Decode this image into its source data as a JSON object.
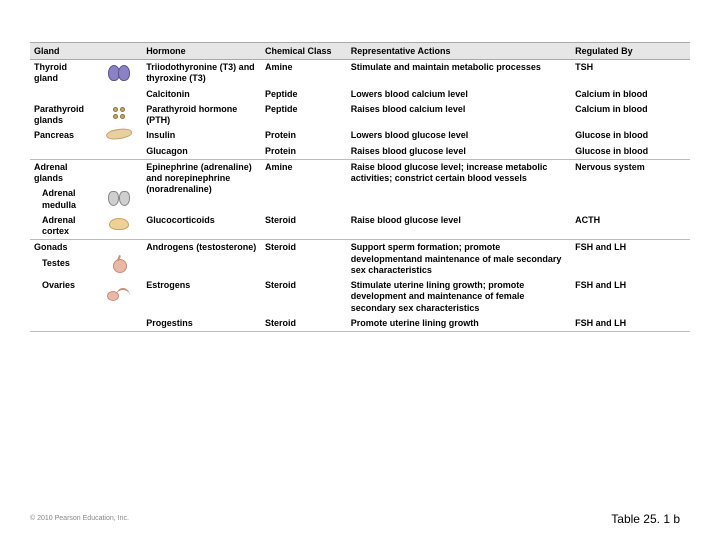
{
  "columns": [
    "Gland",
    "Hormone",
    "Chemical Class",
    "Representative Actions",
    "Regulated By"
  ],
  "rows": [
    {
      "gland": "Thyroid gland",
      "icon": "thyroid",
      "hormone": "Triiodothyronine (T3) and thyroxine (T3)",
      "class": "Amine",
      "action": "Stimulate and maintain metabolic processes",
      "reg": "TSH"
    },
    {
      "gland": "",
      "icon": "",
      "hormone": "Calcitonin",
      "class": "Peptide",
      "action": "Lowers blood calcium level",
      "reg": "Calcium in blood"
    },
    {
      "gland": "Parathyroid glands",
      "icon": "parathyroid",
      "hormone": "Parathyroid hormone (PTH)",
      "class": "Peptide",
      "action": "Raises blood calcium level",
      "reg": "Calcium in blood"
    },
    {
      "gland": "Pancreas",
      "icon": "pancreas",
      "hormone": "Insulin",
      "class": "Protein",
      "action": "Lowers blood glucose level",
      "reg": "Glucose in blood"
    },
    {
      "gland": "",
      "icon": "",
      "hormone": "Glucagon",
      "class": "Protein",
      "action": "Raises blood glucose level",
      "reg": "Glucose in blood",
      "sepAfter": true
    },
    {
      "gland": "Adrenal glands",
      "icon": "",
      "hormone": "Epinephrine (adrenaline) and norepinephrine (noradrenaline)",
      "class": "Amine",
      "action": "Raise blood glucose level; increase metabolic activities; constrict certain blood vessels",
      "reg": "Nervous system",
      "sub": "Adrenal medulla",
      "subIcon": "medulla"
    },
    {
      "gland": "",
      "icon": "",
      "hormone": "Glucocorticoids",
      "class": "Steroid",
      "action": "Raise blood glucose level",
      "reg": "ACTH",
      "sub": "Adrenal cortex",
      "subIcon": "cortex",
      "sepAfter": true
    },
    {
      "gland": "Gonads",
      "icon": "",
      "hormone": "Androgens (testosterone)",
      "class": "Steroid",
      "action": "Support sperm formation; promote developmentand maintenance of male secondary sex characteristics",
      "reg": "FSH and LH",
      "sub": "Testes",
      "subIcon": "testis"
    },
    {
      "gland": "",
      "icon": "",
      "hormone": "Estrogens",
      "class": "Steroid",
      "action": "Stimulate uterine lining growth; promote development and maintenance of female secondary sex characteristics",
      "reg": "FSH and LH",
      "sub": "Ovaries",
      "subIcon": "ovary"
    },
    {
      "gland": "",
      "icon": "",
      "hormone": "Progestins",
      "class": "Steroid",
      "action": "Promote uterine lining growth",
      "reg": "FSH and LH",
      "sepAfter": true
    }
  ],
  "copyright": "© 2010 Pearson Education, Inc.",
  "caption": "Table 25. 1 b"
}
